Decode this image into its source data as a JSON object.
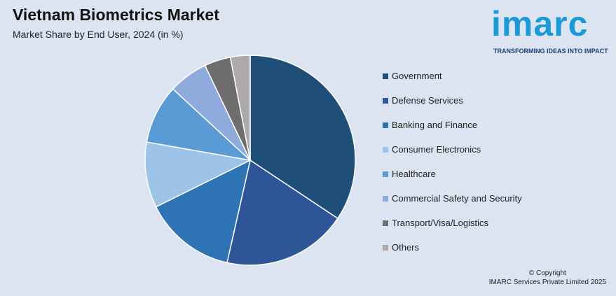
{
  "header": {
    "title": "Vietnam Biometrics Market",
    "subtitle": "Market Share by End User, 2024 (in %)"
  },
  "logo": {
    "word": "imarc",
    "tagline": "TRANSFORMING IDEAS INTO IMPACT",
    "color": "#1a9ad6"
  },
  "footer": {
    "copyright_line1": "© Copyright",
    "copyright_line2": "IMARC Services Private Limited 2025"
  },
  "chart_data": {
    "type": "pie",
    "title": "Vietnam Biometrics Market",
    "subtitle": "Market Share by End User, 2024 (in %)",
    "legend_position": "right",
    "slices": [
      {
        "label": "Government",
        "value": 34,
        "color": "#1f4e79"
      },
      {
        "label": "Defense Services",
        "value": 19,
        "color": "#2e5597"
      },
      {
        "label": "Banking and Finance",
        "value": 14,
        "color": "#2e74b5"
      },
      {
        "label": "Consumer Electronics",
        "value": 10,
        "color": "#9dc3e6"
      },
      {
        "label": "Healthcare",
        "value": 9,
        "color": "#5b9bd5"
      },
      {
        "label": "Commercial Safety and Security",
        "value": 6,
        "color": "#8faadc"
      },
      {
        "label": "Transport/Visa/Logistics",
        "value": 4,
        "color": "#6e6e6e"
      },
      {
        "label": "Others",
        "value": 3,
        "color": "#aeaaaa"
      }
    ]
  }
}
